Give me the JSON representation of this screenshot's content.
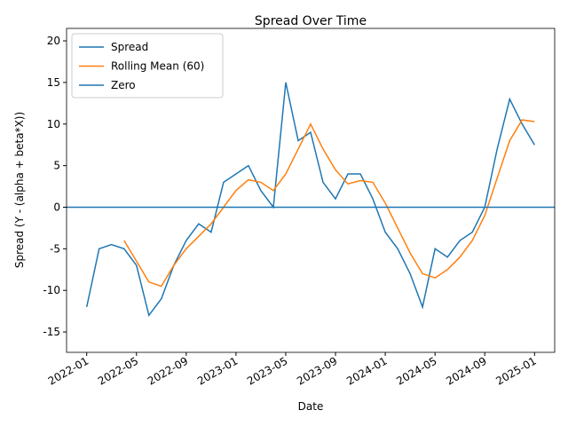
{
  "chart_data": {
    "type": "line",
    "title": "Spread Over Time",
    "xlabel": "Date",
    "ylabel": "Spread (Y - (alpha + beta*X))",
    "x": [
      "2022-01",
      "2022-02",
      "2022-03",
      "2022-04",
      "2022-05",
      "2022-06",
      "2022-07",
      "2022-08",
      "2022-09",
      "2022-10",
      "2022-11",
      "2022-12",
      "2023-01",
      "2023-02",
      "2023-03",
      "2023-04",
      "2023-05",
      "2023-06",
      "2023-07",
      "2023-08",
      "2023-09",
      "2023-10",
      "2023-11",
      "2023-12",
      "2024-01",
      "2024-02",
      "2024-03",
      "2024-04",
      "2024-05",
      "2024-06",
      "2024-07",
      "2024-08",
      "2024-09",
      "2024-10",
      "2024-11",
      "2024-12",
      "2025-01"
    ],
    "series": [
      {
        "name": "Spread",
        "color": "#1f77b4",
        "values": [
          -12,
          -5,
          -4.5,
          -5,
          -7,
          -13,
          -11,
          -7,
          -4,
          -2,
          -3,
          3,
          4,
          5,
          2,
          0,
          15,
          8,
          9,
          3,
          1,
          4,
          4,
          1,
          -3,
          -5,
          -8,
          -12,
          -5,
          -6,
          -4,
          -3,
          0,
          7,
          13,
          10,
          7.5
        ]
      },
      {
        "name": "Rolling Mean (60)",
        "color": "#ff7f0e",
        "values": [
          null,
          null,
          null,
          -4,
          -6.5,
          -9,
          -9.5,
          -7,
          -5,
          -3.5,
          -2,
          0,
          2,
          3.3,
          3,
          2,
          4,
          7,
          10,
          7,
          4.5,
          2.8,
          3.2,
          3,
          0.5,
          -2.5,
          -5.5,
          -8,
          -8.5,
          -7.5,
          -6,
          -4,
          -1,
          3.5,
          8,
          10.5,
          10.3
        ]
      }
    ],
    "hlines": [
      {
        "name": "Zero",
        "color": "#1f77b4",
        "value": 0
      }
    ],
    "ylim": [
      -17.45,
      21.5
    ],
    "yticks": [
      -15,
      -10,
      -5,
      0,
      5,
      10,
      15,
      20
    ],
    "xticks": [
      "2022-01",
      "2022-05",
      "2022-09",
      "2023-01",
      "2023-05",
      "2023-09",
      "2024-01",
      "2024-05",
      "2024-09",
      "2025-01"
    ],
    "grid": false,
    "legend": "upper-left"
  }
}
